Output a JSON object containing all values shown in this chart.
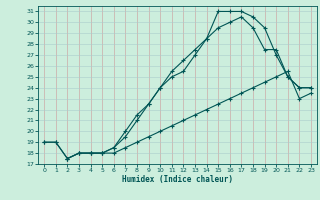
{
  "xlabel": "Humidex (Indice chaleur)",
  "bg_color": "#cceedd",
  "grid_color": "#aacccc",
  "line_color": "#005555",
  "xlim": [
    -0.5,
    23.5
  ],
  "ylim": [
    17,
    31.5
  ],
  "yticks": [
    17,
    18,
    19,
    20,
    21,
    22,
    23,
    24,
    25,
    26,
    27,
    28,
    29,
    30,
    31
  ],
  "xticks": [
    0,
    1,
    2,
    3,
    4,
    5,
    6,
    7,
    8,
    9,
    10,
    11,
    12,
    13,
    14,
    15,
    16,
    17,
    18,
    19,
    20,
    21,
    22,
    23
  ],
  "line1_x": [
    0,
    1,
    2,
    3,
    4,
    5,
    6,
    7,
    8,
    9,
    10,
    11,
    12,
    13,
    14,
    15,
    16,
    17,
    18,
    19,
    20,
    21,
    22,
    23
  ],
  "line1_y": [
    19.0,
    19.0,
    17.5,
    18.0,
    18.0,
    18.0,
    18.0,
    18.5,
    19.0,
    19.5,
    20.0,
    20.5,
    21.0,
    21.5,
    22.0,
    22.5,
    23.0,
    23.5,
    24.0,
    24.5,
    25.0,
    25.5,
    23.0,
    23.5
  ],
  "line2_x": [
    0,
    1,
    2,
    3,
    4,
    5,
    6,
    7,
    8,
    9,
    10,
    11,
    12,
    13,
    14,
    15,
    16,
    17,
    18,
    19,
    20,
    21,
    22,
    23
  ],
  "line2_y": [
    19.0,
    19.0,
    17.5,
    18.0,
    18.0,
    18.0,
    18.5,
    20.0,
    21.5,
    22.5,
    24.0,
    25.0,
    25.5,
    27.0,
    28.5,
    29.5,
    30.0,
    30.5,
    29.5,
    27.5,
    27.5,
    25.0,
    24.0,
    24.0
  ],
  "line3_x": [
    2,
    3,
    4,
    5,
    6,
    7,
    8,
    9,
    10,
    11,
    12,
    13,
    14,
    15,
    16,
    17,
    18,
    19,
    20,
    21,
    22,
    23
  ],
  "line3_y": [
    17.5,
    18.0,
    18.0,
    18.0,
    18.5,
    19.5,
    21.0,
    22.5,
    24.0,
    25.5,
    26.5,
    27.5,
    28.5,
    31.0,
    31.0,
    31.0,
    30.5,
    29.5,
    27.0,
    25.0,
    24.0,
    24.0
  ]
}
